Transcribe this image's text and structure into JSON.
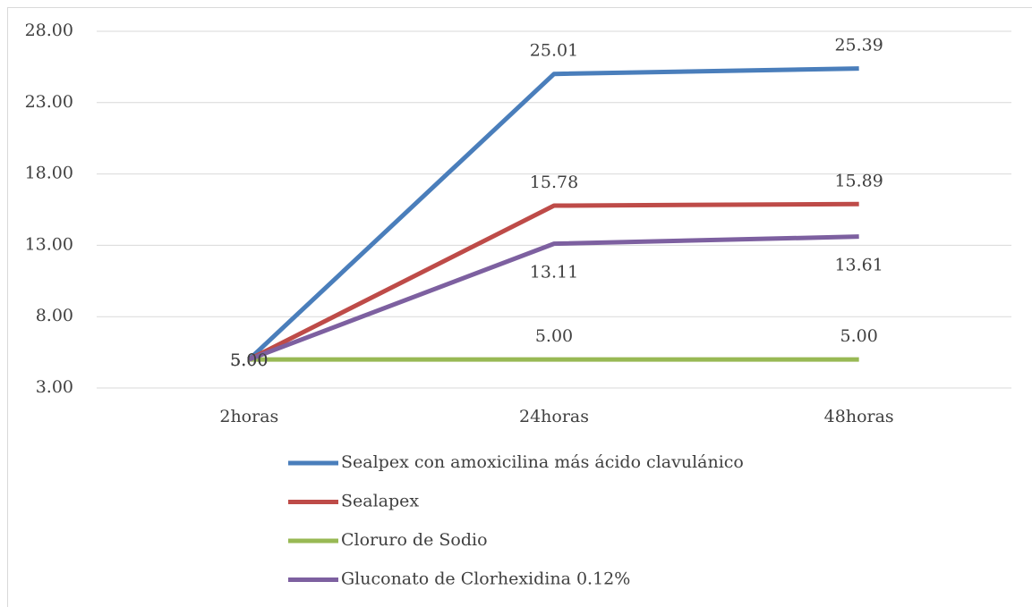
{
  "chart_data": {
    "type": "line",
    "categories": [
      "2horas",
      "24horas",
      "48horas"
    ],
    "series": [
      {
        "name": "Sealpex con amoxicilina más ácido clavulánico",
        "color": "#4a7ebb",
        "values": [
          5.0,
          25.01,
          25.39
        ],
        "value_labels": [
          "5.00",
          "25.01",
          "25.39"
        ]
      },
      {
        "name": "Sealapex",
        "color": "#be4b48",
        "values": [
          5.0,
          15.78,
          15.89
        ],
        "value_labels": [
          "5.00",
          "15.78",
          "15.89"
        ]
      },
      {
        "name": "Cloruro de Sodio",
        "color": "#98b954",
        "values": [
          5.0,
          5.0,
          5.0
        ],
        "value_labels": [
          "5.00",
          "5.00",
          "5.00"
        ]
      },
      {
        "name": "Gluconato de Clorhexidina 0.12%",
        "color": "#7d60a0",
        "values": [
          5.0,
          13.11,
          13.61
        ],
        "value_labels": [
          "5.00",
          "13.11",
          "13.61"
        ]
      }
    ],
    "ylim": [
      3,
      28
    ],
    "yticks": [
      {
        "value": 3,
        "label": "3.00"
      },
      {
        "value": 8,
        "label": "8.00"
      },
      {
        "value": 13,
        "label": "13.00"
      },
      {
        "value": 18,
        "label": "18.00"
      },
      {
        "value": 23,
        "label": "23.00"
      },
      {
        "value": 28,
        "label": "28.00"
      }
    ],
    "grid": true,
    "legend": "bottom"
  }
}
